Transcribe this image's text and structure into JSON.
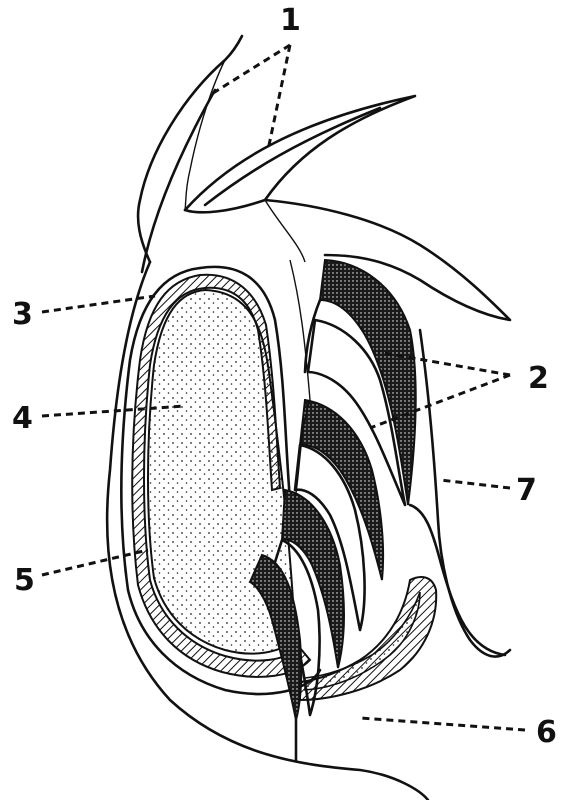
{
  "labels": [
    {
      "id": "1",
      "text": "1"
    },
    {
      "id": "2",
      "text": "2"
    },
    {
      "id": "3",
      "text": "3"
    },
    {
      "id": "4",
      "text": "4"
    },
    {
      "id": "5",
      "text": "5"
    },
    {
      "id": "6",
      "text": "6"
    },
    {
      "id": "7",
      "text": "7"
    }
  ]
}
